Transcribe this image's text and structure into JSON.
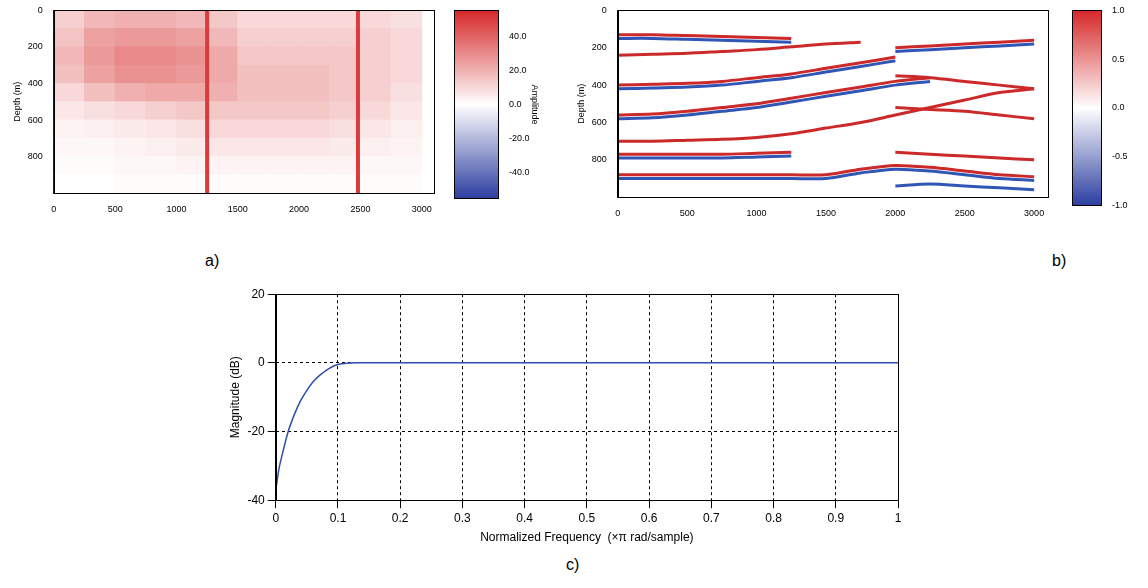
{
  "chart_data": [
    {
      "panel": "a)",
      "type": "heatmap",
      "ylabel": "Depth (m)",
      "xlim": [
        0,
        3100
      ],
      "xticks": [
        0,
        500,
        1000,
        1500,
        2000,
        2500,
        3000
      ],
      "ylim": [
        0,
        1000
      ],
      "yticks": [
        0,
        200,
        400,
        600,
        800
      ],
      "x": [
        125,
        375,
        625,
        875,
        1125,
        1375,
        1625,
        1875,
        2125,
        2375,
        2625,
        2875
      ],
      "y": [
        50,
        150,
        250,
        350,
        450,
        550,
        650,
        750,
        850,
        950
      ],
      "cells": [
        [
          12,
          18,
          20,
          20,
          18,
          14,
          10,
          10,
          10,
          10,
          10,
          8
        ],
        [
          15,
          24,
          26,
          26,
          24,
          18,
          12,
          12,
          12,
          12,
          12,
          10
        ],
        [
          18,
          26,
          30,
          30,
          28,
          22,
          14,
          14,
          14,
          14,
          12,
          10
        ],
        [
          16,
          24,
          28,
          28,
          26,
          22,
          16,
          16,
          16,
          14,
          12,
          10
        ],
        [
          10,
          16,
          20,
          22,
          22,
          20,
          16,
          16,
          16,
          14,
          12,
          8
        ],
        [
          6,
          8,
          10,
          12,
          14,
          14,
          14,
          14,
          14,
          12,
          10,
          6
        ],
        [
          3,
          4,
          5,
          6,
          8,
          10,
          10,
          10,
          10,
          8,
          6,
          4
        ],
        [
          2,
          2,
          3,
          4,
          5,
          6,
          6,
          6,
          6,
          5,
          4,
          3
        ],
        [
          1,
          1,
          2,
          2,
          3,
          3,
          3,
          3,
          3,
          3,
          2,
          2
        ],
        [
          0,
          0,
          1,
          1,
          1,
          1,
          1,
          1,
          1,
          1,
          1,
          1
        ]
      ],
      "lines": {
        "x": [
          1250,
          2480
        ],
        "value": 50
      },
      "colorbar": {
        "label": "Amplitude",
        "range": [
          -55,
          55
        ],
        "ticks": [
          {
            "value": 40,
            "label": "40.0"
          },
          {
            "value": 20,
            "label": "20.0"
          },
          {
            "value": 0,
            "label": "0.0"
          },
          {
            "value": -20,
            "label": "-20.0"
          },
          {
            "value": -40,
            "label": "-40.0"
          }
        ]
      },
      "grid": false
    },
    {
      "panel": "b)",
      "type": "line",
      "ylabel": "Depth (m)",
      "xlim": [
        0,
        3100
      ],
      "xticks": [
        0,
        500,
        1000,
        1500,
        2000,
        2500,
        3000
      ],
      "ylim": [
        0,
        1000
      ],
      "yticks": [
        0,
        200,
        400,
        600,
        800
      ],
      "x": [
        0,
        250,
        500,
        750,
        1000,
        1250,
        1500,
        1750,
        2000,
        2250,
        2500,
        2750,
        3000
      ],
      "series": [
        {
          "color": "#cc2a2a",
          "values": [
            130,
            130,
            135,
            140,
            145,
            150,
            null,
            null,
            null,
            null,
            null,
            null,
            null
          ]
        },
        {
          "color": "#2f55b5",
          "values": [
            150,
            150,
            155,
            160,
            165,
            170,
            null,
            null,
            null,
            null,
            null,
            null,
            null
          ]
        },
        {
          "color": "#cc2a2a",
          "values": [
            240,
            235,
            230,
            220,
            210,
            195,
            180,
            170,
            null,
            null,
            null,
            null,
            null
          ]
        },
        {
          "color": "#cc2a2a",
          "values": [
            400,
            395,
            390,
            380,
            360,
            340,
            310,
            280,
            250,
            null,
            null,
            null,
            null
          ]
        },
        {
          "color": "#2f55b5",
          "values": [
            420,
            415,
            410,
            400,
            380,
            360,
            330,
            300,
            270,
            null,
            null,
            null,
            null
          ]
        },
        {
          "color": "#cc2a2a",
          "values": [
            560,
            555,
            540,
            520,
            500,
            470,
            440,
            410,
            380,
            360,
            null,
            null,
            null
          ]
        },
        {
          "color": "#2f55b5",
          "values": [
            580,
            575,
            560,
            540,
            520,
            490,
            460,
            430,
            400,
            380,
            null,
            null,
            null
          ]
        },
        {
          "color": "#cc2a2a",
          "values": [
            700,
            700,
            695,
            690,
            680,
            660,
            630,
            600,
            560,
            520,
            480,
            440,
            420
          ]
        },
        {
          "color": "#cc2a2a",
          "values": [
            770,
            770,
            770,
            770,
            765,
            760,
            null,
            null,
            null,
            null,
            null,
            null,
            null
          ]
        },
        {
          "color": "#2f55b5",
          "values": [
            790,
            790,
            790,
            790,
            785,
            780,
            null,
            null,
            null,
            null,
            null,
            null,
            null
          ]
        },
        {
          "color": "#cc2a2a",
          "values": [
            880,
            880,
            880,
            880,
            880,
            880,
            880,
            850,
            830,
            840,
            860,
            880,
            890
          ]
        },
        {
          "color": "#2f55b5",
          "values": [
            900,
            900,
            900,
            900,
            900,
            900,
            900,
            870,
            850,
            860,
            880,
            900,
            910
          ]
        },
        {
          "color": "#cc2a2a",
          "values": [
            null,
            null,
            null,
            null,
            null,
            null,
            null,
            null,
            200,
            190,
            180,
            170,
            160
          ]
        },
        {
          "color": "#2f55b5",
          "values": [
            null,
            null,
            null,
            null,
            null,
            null,
            null,
            null,
            220,
            210,
            200,
            190,
            180
          ]
        },
        {
          "color": "#cc2a2a",
          "values": [
            null,
            null,
            null,
            null,
            null,
            null,
            null,
            null,
            350,
            360,
            380,
            400,
            420
          ]
        },
        {
          "color": "#cc2a2a",
          "values": [
            null,
            null,
            null,
            null,
            null,
            null,
            null,
            null,
            520,
            530,
            540,
            560,
            580
          ]
        },
        {
          "color": "#cc2a2a",
          "values": [
            null,
            null,
            null,
            null,
            null,
            null,
            null,
            null,
            760,
            770,
            780,
            790,
            800
          ]
        },
        {
          "color": "#2f55b5",
          "values": [
            null,
            null,
            null,
            null,
            null,
            null,
            null,
            null,
            940,
            930,
            940,
            950,
            960
          ]
        }
      ],
      "colorbar": {
        "range": [
          -1,
          1
        ],
        "ticks": [
          {
            "value": 1,
            "label": "1.0"
          },
          {
            "value": 0.5,
            "label": "0.5"
          },
          {
            "value": 0,
            "label": "0.0"
          },
          {
            "value": -0.5,
            "label": "-0.5"
          },
          {
            "value": -1,
            "label": "-1.0"
          }
        ]
      },
      "grid": false
    },
    {
      "panel": "c)",
      "type": "line",
      "xlabel": "Normalized Frequency  (×π rad/sample)",
      "ylabel": "Magnitude (dB)",
      "xlim": [
        0,
        1
      ],
      "xticks": [
        0,
        0.1,
        0.2,
        0.3,
        0.4,
        0.5,
        0.6,
        0.7,
        0.8,
        0.9,
        1
      ],
      "ylim": [
        -40,
        20
      ],
      "yticks": [
        -40,
        -20,
        0,
        20
      ],
      "x": [
        0,
        0.005,
        0.01,
        0.02,
        0.03,
        0.04,
        0.05,
        0.06,
        0.07,
        0.08,
        0.09,
        0.1,
        0.11,
        0.12,
        0.13,
        0.2,
        0.3,
        0.4,
        0.5,
        0.6,
        0.7,
        0.8,
        0.9,
        1
      ],
      "values": [
        -37,
        -31,
        -27,
        -20,
        -15,
        -11,
        -8,
        -5.5,
        -3.7,
        -2.3,
        -1.2,
        -0.5,
        -0.2,
        -0.05,
        0,
        0,
        0,
        0,
        0,
        0,
        0,
        0,
        0,
        0
      ],
      "color": "#2f4fa8",
      "grid": true
    }
  ]
}
